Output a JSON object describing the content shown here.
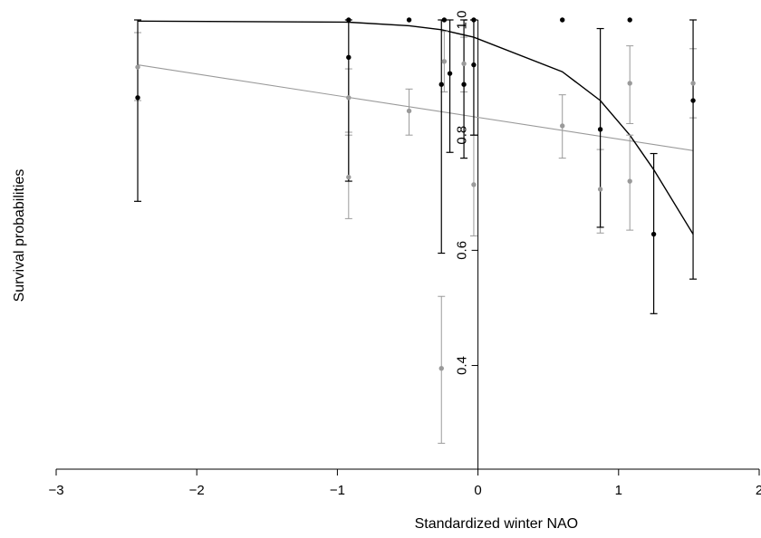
{
  "chart_data": {
    "type": "scatter",
    "xlabel": "Standardized winter NAO",
    "ylabel": "Survival probabilities",
    "xlim": [
      -3,
      2
    ],
    "ylim": [
      0.22,
      1.0
    ],
    "x_ticks": [
      -3,
      -2,
      -1,
      0,
      1,
      2
    ],
    "x_tick_labels": [
      "−3",
      "−2",
      "−1",
      "0",
      "1",
      "2"
    ],
    "y_ticks": [
      0.4,
      0.6,
      0.8,
      1.0
    ],
    "y_tick_labels": [
      "0.4",
      "0.6",
      "0.8",
      "1.0"
    ],
    "y_axis_at_x": 0,
    "grid": false,
    "colors": {
      "black": "#000000",
      "grey": "#9a9a9a"
    },
    "series": [
      {
        "color": "#000000",
        "points": [
          {
            "x": -2.42,
            "y": 0.865,
            "lo": 0.685,
            "hi": 1.0
          },
          {
            "x": -0.92,
            "y": 0.935,
            "lo": 0.72,
            "hi": 1.0
          },
          {
            "x": -0.92,
            "y": 1.0
          },
          {
            "x": -0.49,
            "y": 1.0
          },
          {
            "x": -0.26,
            "y": 0.888,
            "lo": 0.595,
            "hi": 1.0
          },
          {
            "x": -0.24,
            "y": 1.0
          },
          {
            "x": -0.2,
            "y": 0.907,
            "lo": 0.77,
            "hi": 1.0
          },
          {
            "x": -0.1,
            "y": 0.888,
            "lo": 0.76,
            "hi": 1.0
          },
          {
            "x": -0.03,
            "y": 0.922,
            "lo": 0.8,
            "hi": 1.0
          },
          {
            "x": -0.03,
            "y": 1.0
          },
          {
            "x": 0.6,
            "y": 1.0
          },
          {
            "x": 0.87,
            "y": 0.81,
            "lo": 0.64,
            "hi": 0.985
          },
          {
            "x": 1.08,
            "y": 1.0
          },
          {
            "x": 1.25,
            "y": 0.628,
            "lo": 0.49,
            "hi": 0.768
          },
          {
            "x": 1.53,
            "y": 0.86,
            "lo": 0.55,
            "hi": 1.0
          }
        ],
        "fit": {
          "x": [
            -2.42,
            -0.92,
            -0.49,
            -0.26,
            -0.03,
            0.6,
            0.87,
            1.08,
            1.25,
            1.53
          ],
          "y": [
            0.998,
            0.996,
            0.99,
            0.983,
            0.97,
            0.91,
            0.86,
            0.8,
            0.74,
            0.628
          ]
        }
      },
      {
        "color": "#9a9a9a",
        "points": [
          {
            "x": -2.42,
            "y": 0.918,
            "lo": 0.86,
            "hi": 0.978
          },
          {
            "x": -0.92,
            "y": 0.865,
            "lo": 0.805,
            "hi": 0.915
          },
          {
            "x": -0.92,
            "y": 0.727,
            "lo": 0.655,
            "hi": 0.8
          },
          {
            "x": -0.49,
            "y": 0.842,
            "lo": 0.8,
            "hi": 0.88
          },
          {
            "x": -0.26,
            "y": 0.395,
            "lo": 0.265,
            "hi": 0.52
          },
          {
            "x": -0.24,
            "y": 0.928,
            "lo": 0.875,
            "hi": 0.98
          },
          {
            "x": -0.1,
            "y": 0.924,
            "lo": 0.875,
            "hi": 0.97
          },
          {
            "x": -0.03,
            "y": 0.714,
            "lo": 0.625,
            "hi": 0.8
          },
          {
            "x": 0.6,
            "y": 0.816,
            "lo": 0.76,
            "hi": 0.87
          },
          {
            "x": 0.87,
            "y": 0.706,
            "lo": 0.63,
            "hi": 0.775
          },
          {
            "x": 1.08,
            "y": 0.89,
            "lo": 0.82,
            "hi": 0.955
          },
          {
            "x": 1.08,
            "y": 0.72,
            "lo": 0.635,
            "hi": 0.8
          },
          {
            "x": 1.53,
            "y": 0.89,
            "lo": 0.83,
            "hi": 0.95
          }
        ],
        "fit": {
          "x": [
            -2.42,
            1.53
          ],
          "y": [
            0.922,
            0.773
          ]
        }
      }
    ]
  }
}
